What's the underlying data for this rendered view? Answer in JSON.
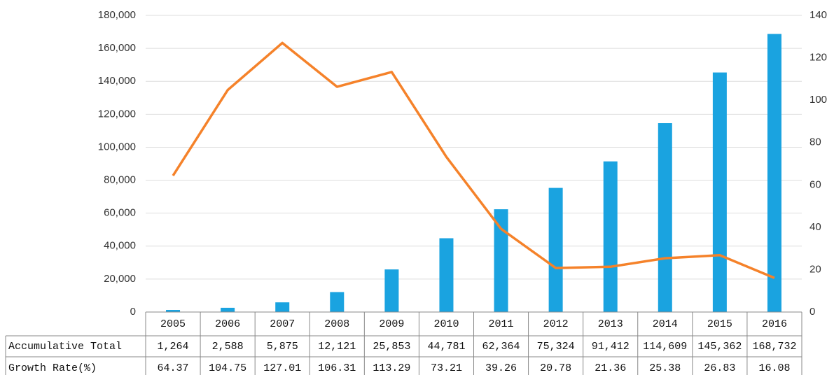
{
  "chart_data": {
    "type": "bar",
    "categories": [
      "2005",
      "2006",
      "2007",
      "2008",
      "2009",
      "2010",
      "2011",
      "2012",
      "2013",
      "2014",
      "2015",
      "2016"
    ],
    "series": [
      {
        "name": "Accumulative Total",
        "type": "bar",
        "color": "#1aa3e0",
        "values": [
          1264,
          2588,
          5875,
          12121,
          25853,
          44781,
          62364,
          75324,
          91412,
          114609,
          145362,
          168732
        ],
        "value_labels": [
          "1,264",
          "2,588",
          "5,875",
          "12,121",
          "25,853",
          "44,781",
          "62,364",
          "75,324",
          "91,412",
          "114,609",
          "145,362",
          "168,732"
        ]
      },
      {
        "name": "Growth Rate(%)",
        "type": "line",
        "color": "#f5822a",
        "axis": "y2",
        "values": [
          64.37,
          104.75,
          127.01,
          106.31,
          113.29,
          73.21,
          39.26,
          20.78,
          21.36,
          25.38,
          26.83,
          16.08
        ]
      }
    ],
    "ylim": [
      0,
      180000
    ],
    "yticks": [
      0,
      {
        "value": 20000,
        "label": "20,000"
      },
      {
        "value": 40000,
        "label": "40,000"
      },
      {
        "value": 60000,
        "label": "60,000"
      },
      {
        "value": 80000,
        "label": "80,000"
      },
      {
        "value": 100000,
        "label": "100,000"
      },
      {
        "value": 120000,
        "label": "120,000"
      },
      {
        "value": 140000,
        "label": "140,000"
      },
      {
        "value": 160000,
        "label": "160,000"
      },
      {
        "value": 180000,
        "label": "180,000"
      }
    ],
    "y2lim": [
      0,
      140
    ],
    "y2ticks": [
      0,
      20,
      40,
      60,
      80,
      100,
      120,
      140
    ],
    "grid": true
  }
}
